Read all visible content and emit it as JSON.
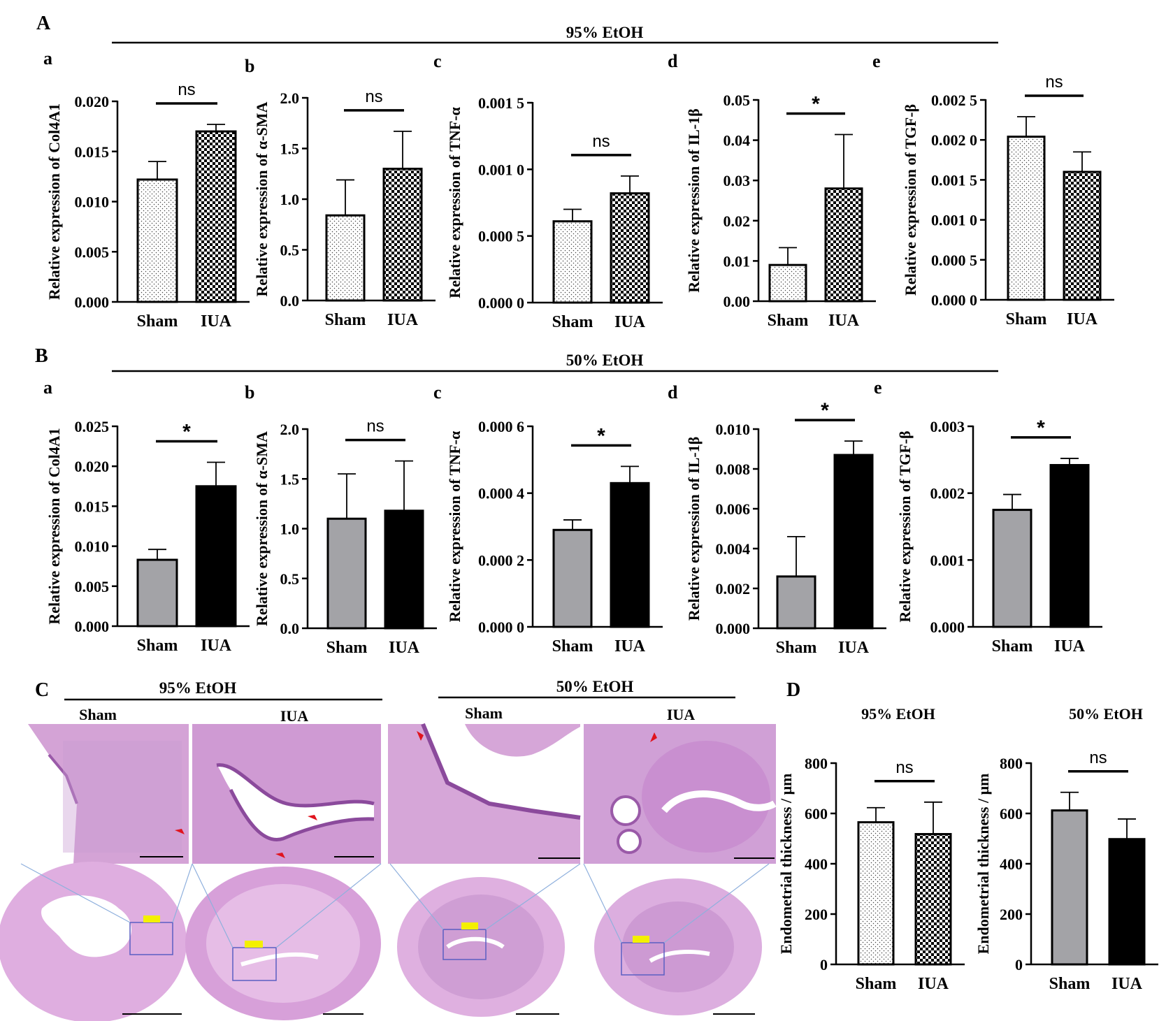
{
  "panels": {
    "A": {
      "letter": "A",
      "condition": "95% EtOH"
    },
    "B": {
      "letter": "B",
      "condition": "50% EtOH"
    },
    "C": {
      "letter": "C",
      "condition_left": "95% EtOH",
      "condition_right": "50% EtOH",
      "groups": [
        "Sham",
        "IUA",
        "Sham",
        "IUA"
      ]
    },
    "D": {
      "letter": "D"
    }
  },
  "colors": {
    "sham_gray": "#a3a3a7",
    "iua_black": "#000000",
    "tissue_pink": "#d9a8dc",
    "tissue_light": "#f1d7ef",
    "zoom_line": "#8fb0dd"
  },
  "chart_data": [
    {
      "id": "A-a",
      "sub": "a",
      "type": "bar",
      "categories": [
        "Sham",
        "IUA"
      ],
      "values": [
        0.0122,
        0.017
      ],
      "errors": [
        0.0018,
        0.0007
      ],
      "ylabel": "Relative expression of Col4A1",
      "ylim": [
        0,
        0.02
      ],
      "ticks": [
        "0.000",
        "0.005",
        "0.010",
        "0.015",
        "0.020"
      ],
      "sig": "ns",
      "fill": [
        "dots",
        "checker"
      ]
    },
    {
      "id": "A-b",
      "sub": "b",
      "type": "bar",
      "categories": [
        "Sham",
        "IUA"
      ],
      "values": [
        0.84,
        1.3
      ],
      "errors": [
        0.35,
        0.37
      ],
      "ylabel": "Relative expression of α-SMA",
      "ylim": [
        0,
        2.0
      ],
      "ticks": [
        "0.0",
        "0.5",
        "1.0",
        "1.5",
        "2.0"
      ],
      "sig": "ns",
      "fill": [
        "dots",
        "checker"
      ]
    },
    {
      "id": "A-c",
      "sub": "c",
      "type": "bar",
      "categories": [
        "Sham",
        "IUA"
      ],
      "values": [
        0.00061,
        0.00082
      ],
      "errors": [
        9e-05,
        0.00013
      ],
      "ylabel": "Relative expression of TNF-α",
      "ylim": [
        0,
        0.0015
      ],
      "ticks": [
        "0.000 0",
        "0.000 5",
        "0.001 0",
        "0.001 5"
      ],
      "sig": "ns",
      "fill": [
        "dots",
        "checker"
      ]
    },
    {
      "id": "A-d",
      "sub": "d",
      "type": "bar",
      "categories": [
        "Sham",
        "IUA"
      ],
      "values": [
        0.009,
        0.028
      ],
      "errors": [
        0.0043,
        0.0134
      ],
      "ylabel": "Relative expression of IL-1β",
      "ylim": [
        0,
        0.05
      ],
      "ticks": [
        "0.00",
        "0.01",
        "0.02",
        "0.03",
        "0.04",
        "0.05"
      ],
      "sig": "*",
      "fill": [
        "dots",
        "checker"
      ]
    },
    {
      "id": "A-e",
      "sub": "e",
      "type": "bar",
      "categories": [
        "Sham",
        "IUA"
      ],
      "values": [
        0.00204,
        0.0016
      ],
      "errors": [
        0.00025,
        0.00025
      ],
      "ylabel": "Relative expression of TGF-β",
      "ylim": [
        0,
        0.0025
      ],
      "ticks": [
        "0.000 0",
        "0.000 5",
        "0.001 0",
        "0.001 5",
        "0.002 0",
        "0.002 5"
      ],
      "sig": "ns",
      "fill": [
        "dots",
        "checker"
      ]
    },
    {
      "id": "B-a",
      "sub": "a",
      "type": "bar",
      "categories": [
        "Sham",
        "IUA"
      ],
      "values": [
        0.0083,
        0.0175
      ],
      "errors": [
        0.0013,
        0.003
      ],
      "ylabel": "Relative expression of Col4A1",
      "ylim": [
        0,
        0.025
      ],
      "ticks": [
        "0.000",
        "0.005",
        "0.010",
        "0.015",
        "0.020",
        "0.025"
      ],
      "sig": "*",
      "fill": [
        "gray",
        "black"
      ]
    },
    {
      "id": "B-b",
      "sub": "b",
      "type": "bar",
      "categories": [
        "Sham",
        "IUA"
      ],
      "values": [
        1.1,
        1.18
      ],
      "errors": [
        0.45,
        0.5
      ],
      "ylabel": "Relative expression of α-SMA",
      "ylim": [
        0,
        2.0
      ],
      "ticks": [
        "0.0",
        "0.5",
        "1.0",
        "1.5",
        "2.0"
      ],
      "sig": "ns",
      "fill": [
        "gray",
        "black"
      ]
    },
    {
      "id": "B-c",
      "sub": "c",
      "type": "bar",
      "categories": [
        "Sham",
        "IUA"
      ],
      "values": [
        0.00029,
        0.00043
      ],
      "errors": [
        3e-05,
        5e-05
      ],
      "ylabel": "Relative expression of TNF-α",
      "ylim": [
        0,
        0.0006
      ],
      "ticks": [
        "0.000 0",
        "0.000 2",
        "0.000 4",
        "0.000 6"
      ],
      "sig": "*",
      "fill": [
        "gray",
        "black"
      ]
    },
    {
      "id": "B-d",
      "sub": "d",
      "type": "bar",
      "categories": [
        "Sham",
        "IUA"
      ],
      "values": [
        0.0026,
        0.0087
      ],
      "errors": [
        0.002,
        0.0007
      ],
      "ylabel": "Relative expression of IL-1β",
      "ylim": [
        0,
        0.01
      ],
      "ticks": [
        "0.000",
        "0.002",
        "0.004",
        "0.006",
        "0.008",
        "0.010"
      ],
      "sig": "*",
      "fill": [
        "gray",
        "black"
      ]
    },
    {
      "id": "B-e",
      "sub": "e",
      "type": "bar",
      "categories": [
        "Sham",
        "IUA"
      ],
      "values": [
        0.00175,
        0.00242
      ],
      "errors": [
        0.00023,
        0.0001
      ],
      "ylabel": "Relative expression of TGF-β",
      "ylim": [
        0,
        0.003
      ],
      "ticks": [
        "0.000",
        "0.001",
        "0.002",
        "0.003"
      ],
      "sig": "*",
      "fill": [
        "gray",
        "black"
      ]
    },
    {
      "id": "D-95",
      "title": "95% EtOH",
      "type": "bar",
      "categories": [
        "Sham",
        "IUA"
      ],
      "values": [
        565,
        518
      ],
      "errors": [
        58,
        127
      ],
      "ylabel": "Endometrial thickness / μm",
      "ylim": [
        0,
        800
      ],
      "ticks": [
        "0",
        "200",
        "400",
        "600",
        "800"
      ],
      "sig": "ns",
      "fill": [
        "dots",
        "checker"
      ]
    },
    {
      "id": "D-50",
      "title": "50% EtOH",
      "type": "bar",
      "categories": [
        "Sham",
        "IUA"
      ],
      "values": [
        612,
        498
      ],
      "errors": [
        72,
        80
      ],
      "ylabel": "Endometrial thickness / μm",
      "ylim": [
        0,
        800
      ],
      "ticks": [
        "0",
        "200",
        "400",
        "600",
        "800"
      ],
      "sig": "ns",
      "fill": [
        "gray",
        "black"
      ]
    }
  ]
}
